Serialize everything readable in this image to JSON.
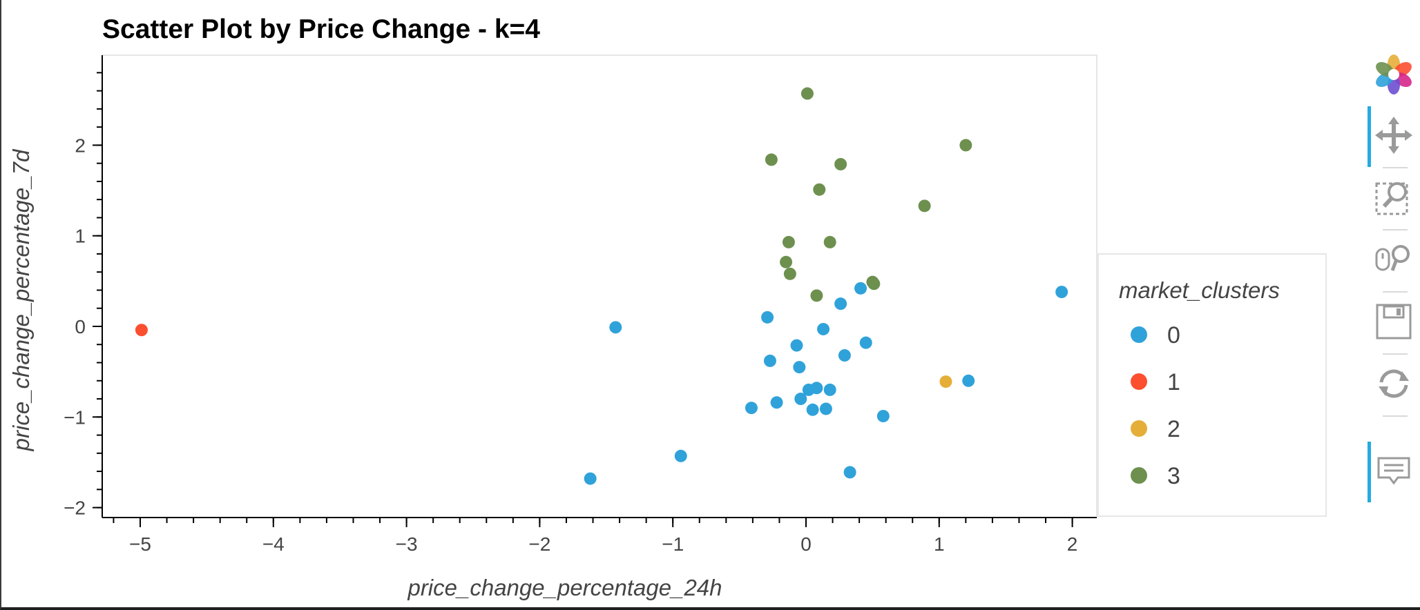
{
  "chart_data": {
    "type": "scatter",
    "title": "Scatter Plot by Price Change - k=4",
    "xlabel": "price_change_percentage_24h",
    "ylabel": "price_change_percentage_7d",
    "xlim": [
      -5.2,
      2.2
    ],
    "ylim": [
      -2.1,
      3.0
    ],
    "x_ticks": [
      -5,
      -4,
      -3,
      -2,
      -1,
      0,
      1,
      2
    ],
    "y_ticks": [
      -2,
      -1,
      0,
      1,
      2
    ],
    "x_tick_labels": [
      "−5",
      "−4",
      "−3",
      "−2",
      "−1",
      "0",
      "1",
      "2"
    ],
    "y_tick_labels": [
      "−2",
      "−1",
      "0",
      "1",
      "2"
    ],
    "grid": false,
    "legend_position": "right",
    "legend_title": "market_clusters",
    "series": [
      {
        "name": "0",
        "color": "#30a2da",
        "x": [
          -1.62,
          -1.43,
          -0.94,
          -0.41,
          -0.29,
          -0.27,
          -0.22,
          -0.07,
          -0.05,
          -0.04,
          0.02,
          0.05,
          0.08,
          0.13,
          0.15,
          0.18,
          0.26,
          0.29,
          0.33,
          0.41,
          0.45,
          0.58,
          1.22,
          1.92
        ],
        "y": [
          -1.68,
          -0.01,
          -1.43,
          -0.9,
          0.1,
          -0.38,
          -0.84,
          -0.21,
          -0.45,
          -0.8,
          -0.7,
          -0.92,
          -0.68,
          -0.03,
          -0.91,
          -0.7,
          0.25,
          -0.32,
          -1.61,
          0.42,
          -0.18,
          -0.99,
          -0.6,
          0.38
        ]
      },
      {
        "name": "1",
        "color": "#fc4f30",
        "x": [
          -4.99
        ],
        "y": [
          -0.04
        ]
      },
      {
        "name": "2",
        "color": "#e5ae38",
        "x": [
          1.05
        ],
        "y": [
          -0.61
        ]
      },
      {
        "name": "3",
        "color": "#6d904f",
        "x": [
          -0.26,
          -0.15,
          -0.13,
          -0.12,
          0.01,
          0.08,
          0.1,
          0.18,
          0.26,
          0.5,
          0.51,
          0.89,
          1.2
        ],
        "y": [
          1.84,
          0.71,
          0.93,
          0.58,
          2.57,
          0.34,
          1.51,
          0.93,
          1.79,
          0.49,
          0.47,
          1.33,
          2.0
        ]
      }
    ]
  },
  "toolbar": {
    "tools": [
      "bokeh-logo-icon",
      "pan-icon",
      "box-zoom-icon",
      "wheel-zoom-icon",
      "save-icon",
      "reset-icon",
      "hover-icon"
    ],
    "accent": "#26aae1"
  }
}
